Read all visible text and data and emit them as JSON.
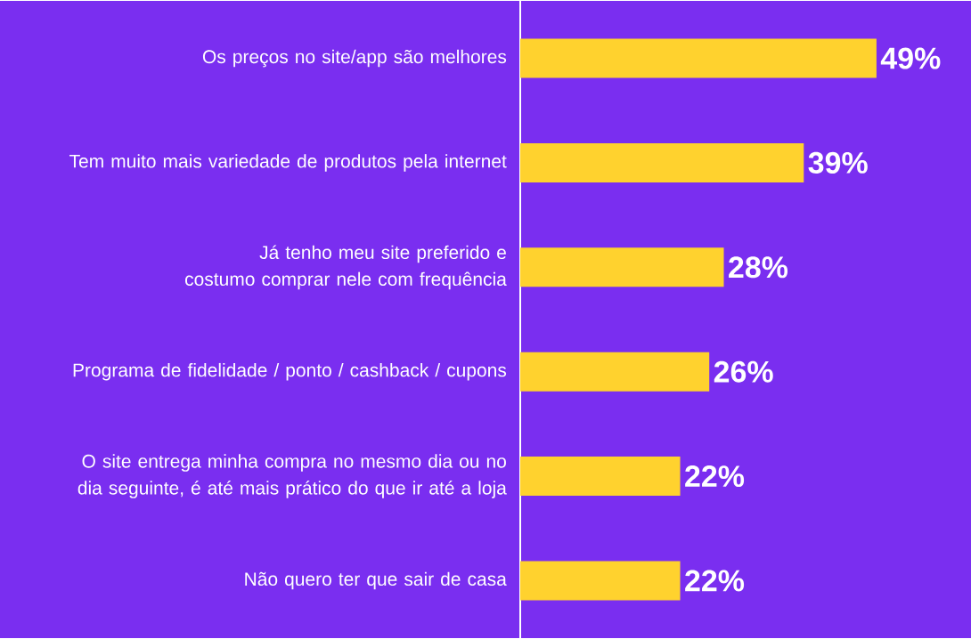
{
  "chart_data": {
    "type": "bar",
    "orientation": "horizontal",
    "categories": [
      "Os preços no site/app são melhores",
      "Tem muito mais variedade de produtos pela internet",
      "Já tenho meu site preferido e costumo comprar nele com frequência",
      "Programa de fidelidade / ponto / cashback / cupons",
      "O site entrega minha compra no mesmo dia ou no dia seguinte, é até mais prático do que ir até a loja",
      "Não quero ter que sair de casa"
    ],
    "values": [
      49,
      39,
      28,
      26,
      22,
      22
    ],
    "value_labels": [
      "49%",
      "39%",
      "28%",
      "26%",
      "22%",
      "22%"
    ],
    "color": "#ffd22e",
    "xlim": [
      0,
      62
    ],
    "tick_labels": "y"
  }
}
